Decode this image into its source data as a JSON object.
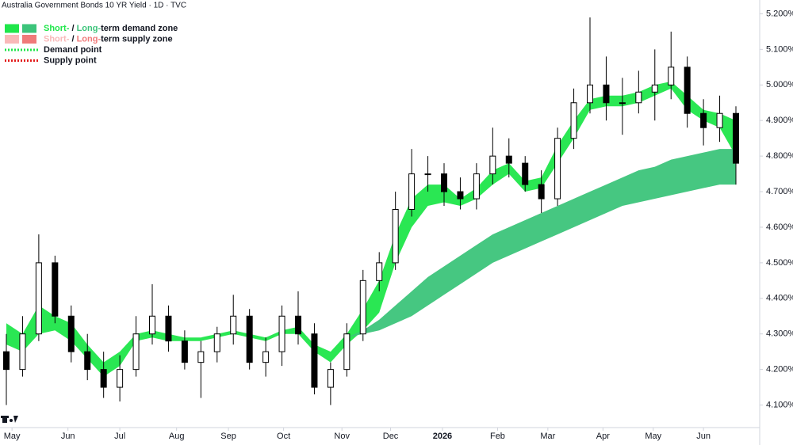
{
  "chart_data": {
    "type": "candlestick",
    "title": "Australia Government Bonds 10 YR Yield · 1D · TVC",
    "categories": [
      null,
      null,
      null,
      null,
      null,
      null,
      null,
      null,
      null,
      null,
      null,
      null,
      null,
      null,
      null,
      null,
      null,
      null,
      null,
      null,
      null,
      null,
      null,
      null,
      null,
      null,
      null,
      null,
      null,
      null,
      null,
      null,
      null,
      null,
      null,
      null,
      null,
      null,
      null,
      null,
      null,
      null,
      null,
      null,
      null,
      null
    ],
    "open": [
      4.25,
      4.2,
      4.3,
      4.5,
      4.35,
      4.25,
      4.2,
      4.15,
      4.2,
      4.3,
      4.35,
      4.28,
      4.22,
      4.25,
      4.3,
      4.35,
      4.22,
      4.25,
      4.35,
      4.3,
      4.15,
      4.2,
      4.3,
      4.45,
      4.5,
      4.65,
      4.75,
      4.75,
      4.7,
      4.68,
      4.75,
      4.8,
      4.78,
      4.72,
      4.68,
      4.85,
      4.95,
      5.0,
      4.95,
      4.95,
      4.98,
      5.0,
      5.05,
      4.92,
      4.88,
      4.92
    ],
    "high": [
      4.3,
      4.35,
      4.58,
      4.52,
      4.38,
      4.3,
      4.25,
      4.24,
      4.35,
      4.44,
      4.38,
      4.31,
      4.28,
      4.32,
      4.41,
      4.37,
      4.29,
      4.38,
      4.42,
      4.33,
      4.22,
      4.33,
      4.48,
      4.53,
      4.7,
      4.82,
      4.8,
      4.78,
      4.74,
      4.78,
      4.88,
      4.85,
      4.8,
      4.76,
      4.88,
      4.99,
      5.19,
      5.08,
      5.02,
      5.04,
      5.1,
      5.15,
      5.08,
      4.96,
      4.97,
      4.94
    ],
    "low": [
      4.1,
      4.18,
      4.28,
      4.33,
      4.22,
      4.17,
      4.12,
      4.11,
      4.18,
      4.27,
      4.25,
      4.2,
      4.12,
      4.22,
      4.27,
      4.2,
      4.18,
      4.21,
      4.27,
      4.13,
      4.1,
      4.18,
      4.28,
      4.42,
      4.48,
      4.63,
      4.7,
      4.66,
      4.65,
      4.65,
      4.72,
      4.74,
      4.7,
      4.64,
      4.66,
      4.82,
      4.92,
      4.9,
      4.86,
      4.92,
      4.9,
      4.96,
      4.88,
      4.83,
      4.84,
      4.72
    ],
    "close": [
      4.2,
      4.3,
      4.5,
      4.35,
      4.25,
      4.2,
      4.15,
      4.2,
      4.3,
      4.35,
      4.28,
      4.22,
      4.25,
      4.3,
      4.35,
      4.22,
      4.25,
      4.35,
      4.3,
      4.15,
      4.2,
      4.3,
      4.45,
      4.5,
      4.65,
      4.75,
      4.75,
      4.7,
      4.68,
      4.75,
      4.8,
      4.78,
      4.72,
      4.68,
      4.85,
      4.95,
      5.0,
      4.95,
      4.95,
      4.98,
      5.0,
      5.05,
      4.92,
      4.88,
      4.92,
      4.78
    ],
    "zones": [
      {
        "name": "Short-term zone",
        "color": "#1fe64a",
        "upper": [
          4.33,
          4.3,
          4.38,
          4.35,
          4.33,
          4.27,
          4.22,
          4.25,
          4.3,
          4.31,
          4.3,
          4.29,
          4.29,
          4.3,
          4.31,
          4.3,
          4.29,
          4.31,
          4.32,
          4.27,
          4.25,
          4.3,
          4.37,
          4.45,
          4.58,
          4.68,
          4.72,
          4.72,
          4.68,
          4.71,
          4.76,
          4.78,
          4.73,
          4.74,
          4.83,
          4.9,
          4.96,
          4.97,
          4.97,
          4.98,
          5.0,
          5.01,
          4.97,
          4.93,
          4.92,
          4.9
        ],
        "lower": [
          4.27,
          4.25,
          4.3,
          4.31,
          4.28,
          4.23,
          4.18,
          4.21,
          4.28,
          4.29,
          4.28,
          4.28,
          4.28,
          4.29,
          4.3,
          4.29,
          4.28,
          4.3,
          4.3,
          4.25,
          4.22,
          4.27,
          4.31,
          4.36,
          4.5,
          4.6,
          4.66,
          4.67,
          4.66,
          4.68,
          4.72,
          4.75,
          4.7,
          4.71,
          4.78,
          4.85,
          4.93,
          4.94,
          4.94,
          4.95,
          4.97,
          4.99,
          4.93,
          4.9,
          4.88,
          4.8
        ]
      },
      {
        "name": "Long-term zone",
        "color": "#3cc47a",
        "upper": [
          null,
          null,
          null,
          null,
          null,
          null,
          null,
          null,
          null,
          null,
          null,
          null,
          null,
          null,
          null,
          null,
          null,
          null,
          null,
          null,
          null,
          4.29,
          4.31,
          4.34,
          4.38,
          4.42,
          4.46,
          4.49,
          4.52,
          4.55,
          4.58,
          4.6,
          4.62,
          4.64,
          4.66,
          4.68,
          4.7,
          4.72,
          4.74,
          4.76,
          4.77,
          4.79,
          4.8,
          4.81,
          4.82,
          4.82
        ],
        "lower": [
          null,
          null,
          null,
          null,
          null,
          null,
          null,
          null,
          null,
          null,
          null,
          null,
          null,
          null,
          null,
          null,
          null,
          null,
          null,
          null,
          null,
          4.29,
          4.3,
          4.31,
          4.33,
          4.35,
          4.38,
          4.41,
          4.44,
          4.47,
          4.5,
          4.52,
          4.54,
          4.56,
          4.58,
          4.6,
          4.62,
          4.64,
          4.66,
          4.67,
          4.68,
          4.69,
          4.7,
          4.71,
          4.72,
          4.72
        ]
      }
    ],
    "legend": [
      {
        "parts": [
          "Short-",
          " / ",
          "Long-",
          "term demand zone"
        ],
        "colors": [
          "#1fe64a",
          "#3cc47a"
        ],
        "style": "box"
      },
      {
        "parts": [
          "Short-",
          " / ",
          "Long-",
          "term supply zone"
        ],
        "colors": [
          "#f9b9b9",
          "#f07a7a"
        ],
        "style": "box"
      },
      {
        "parts": [
          "Demand point"
        ],
        "colors": [
          "#1fe64a"
        ],
        "style": "dots"
      },
      {
        "parts": [
          "Supply point"
        ],
        "colors": [
          "#e31b1b"
        ],
        "style": "dots"
      }
    ],
    "xlim": [
      0,
      45
    ],
    "xticks": [
      {
        "value": 0.35,
        "label": "May"
      },
      {
        "value": 3.8,
        "label": "Jun"
      },
      {
        "value": 7.0,
        "label": "Jul"
      },
      {
        "value": 10.5,
        "label": "Aug"
      },
      {
        "value": 13.7,
        "label": "Sep"
      },
      {
        "value": 17.1,
        "label": "Oct"
      },
      {
        "value": 20.7,
        "label": "Nov"
      },
      {
        "value": 23.7,
        "label": "Dec"
      },
      {
        "value": 26.9,
        "label": "2026"
      },
      {
        "value": 30.3,
        "label": "Feb"
      },
      {
        "value": 33.4,
        "label": "Mar"
      },
      {
        "value": 36.8,
        "label": "Apr"
      },
      {
        "value": 39.9,
        "label": "May"
      },
      {
        "value": 43.0,
        "label": "Jun"
      }
    ],
    "ylim": [
      4.05,
      5.23
    ],
    "yticks": [
      {
        "value": 4.1,
        "label": "4.100%"
      },
      {
        "value": 4.2,
        "label": "4.200%"
      },
      {
        "value": 4.3,
        "label": "4.300%"
      },
      {
        "value": 4.4,
        "label": "4.400%"
      },
      {
        "value": 4.5,
        "label": "4.500%"
      },
      {
        "value": 4.6,
        "label": "4.600%"
      },
      {
        "value": 4.7,
        "label": "4.700%"
      },
      {
        "value": 4.8,
        "label": "4.800%"
      },
      {
        "value": 4.9,
        "label": "4.900%"
      },
      {
        "value": 5.0,
        "label": "5.000%"
      },
      {
        "value": 5.1,
        "label": "5.100%"
      },
      {
        "value": 5.2,
        "label": "5.200%"
      }
    ],
    "up_color": "#ffffff",
    "down_color": "#000000"
  }
}
